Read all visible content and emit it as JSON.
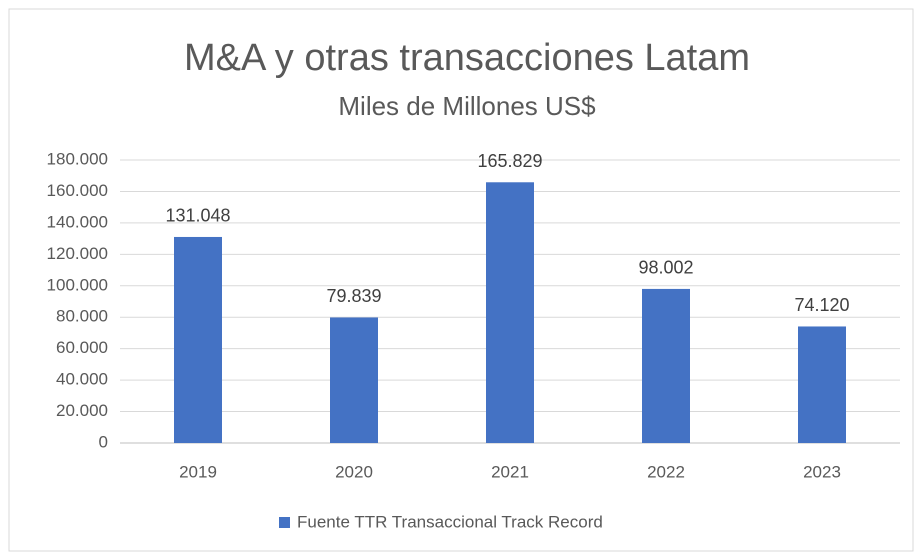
{
  "chart_data": {
    "type": "bar",
    "title": "M&A y otras transacciones Latam",
    "subtitle": "Miles de Millones US$",
    "categories": [
      "2019",
      "2020",
      "2021",
      "2022",
      "2023"
    ],
    "series": [
      {
        "name": "Fuente TTR Transaccional Track Record",
        "color": "#4472c4",
        "values": [
          131048,
          79839,
          165829,
          98002,
          74120
        ],
        "value_labels": [
          "131.048",
          "79.839",
          "165.829",
          "98.002",
          "74.120"
        ]
      }
    ],
    "ylim": [
      0,
      180000
    ],
    "yticks": [
      {
        "value": 0,
        "label": "0"
      },
      {
        "value": 20000,
        "label": "20.000"
      },
      {
        "value": 40000,
        "label": "40.000"
      },
      {
        "value": 60000,
        "label": "60.000"
      },
      {
        "value": 80000,
        "label": "80.000"
      },
      {
        "value": 100000,
        "label": "100.000"
      },
      {
        "value": 120000,
        "label": "120.000"
      },
      {
        "value": 140000,
        "label": "140.000"
      },
      {
        "value": 160000,
        "label": "160.000"
      },
      {
        "value": 180000,
        "label": "180.000"
      }
    ],
    "grid": true,
    "legend": "bottom"
  }
}
